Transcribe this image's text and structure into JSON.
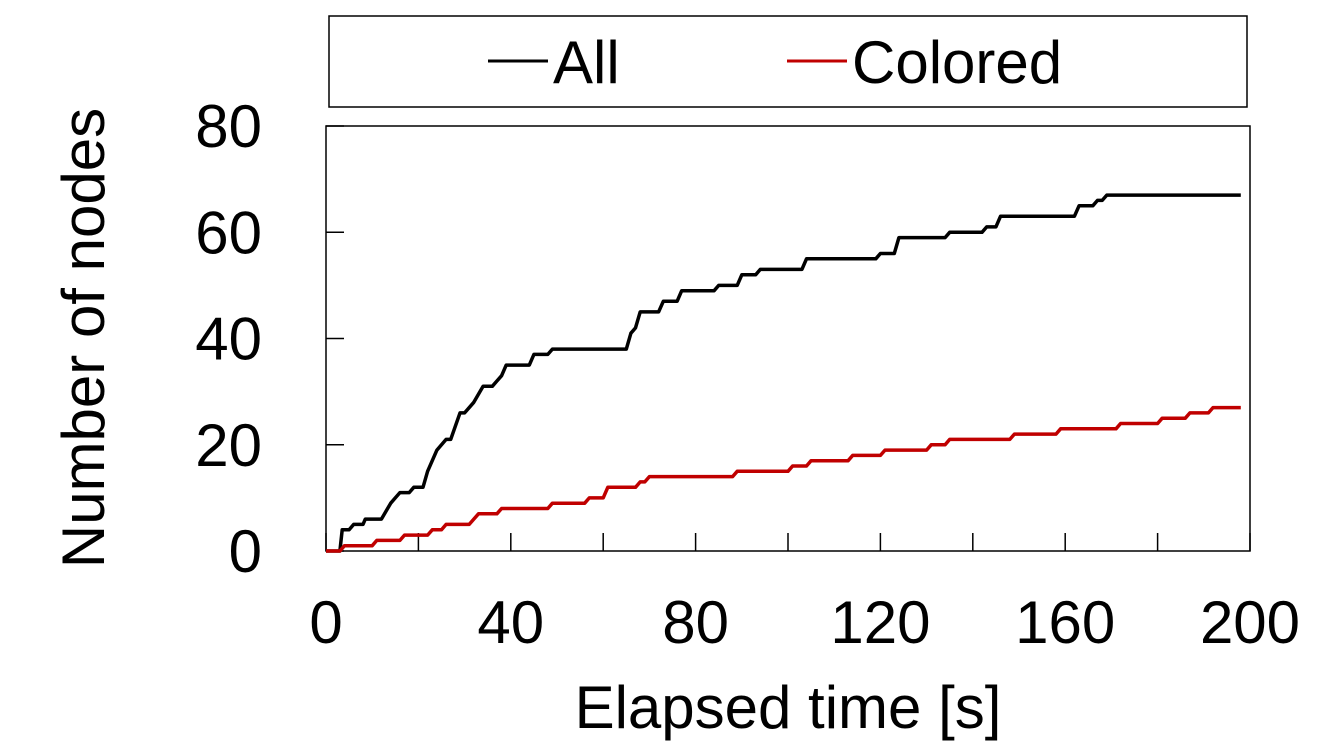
{
  "chart_data": {
    "type": "line",
    "xlabel": "Elapsed time [s]",
    "ylabel": "Number of nodes",
    "xlim": [
      0,
      200
    ],
    "ylim": [
      0,
      80
    ],
    "xticks": [
      0,
      40,
      80,
      120,
      160,
      200
    ],
    "xticks_minor": [
      20,
      60,
      100,
      140,
      180
    ],
    "yticks": [
      0,
      20,
      40,
      60,
      80
    ],
    "grid": false,
    "legend_position": "top (above plot, framed)",
    "series": [
      {
        "name": "All",
        "color": "#000000",
        "step": true,
        "points": [
          [
            0,
            0
          ],
          [
            3,
            0
          ],
          [
            3.5,
            4
          ],
          [
            5,
            4
          ],
          [
            6,
            5
          ],
          [
            8,
            5
          ],
          [
            8.5,
            6
          ],
          [
            12,
            6
          ],
          [
            14,
            9
          ],
          [
            15,
            10
          ],
          [
            16,
            11
          ],
          [
            18,
            11
          ],
          [
            19,
            12
          ],
          [
            21,
            12
          ],
          [
            22,
            15
          ],
          [
            24,
            19
          ],
          [
            26,
            21
          ],
          [
            27,
            21
          ],
          [
            29,
            26
          ],
          [
            30,
            26
          ],
          [
            32,
            28
          ],
          [
            34,
            31
          ],
          [
            36,
            31
          ],
          [
            37,
            32
          ],
          [
            38,
            33
          ],
          [
            39,
            35
          ],
          [
            44,
            35
          ],
          [
            45,
            37
          ],
          [
            48,
            37
          ],
          [
            49,
            38
          ],
          [
            65,
            38
          ],
          [
            66,
            41
          ],
          [
            67,
            42
          ],
          [
            68,
            45
          ],
          [
            72,
            45
          ],
          [
            73,
            47
          ],
          [
            76,
            47
          ],
          [
            77,
            49
          ],
          [
            84,
            49
          ],
          [
            85,
            50
          ],
          [
            89,
            50
          ],
          [
            90,
            52
          ],
          [
            93,
            52
          ],
          [
            94,
            53
          ],
          [
            103,
            53
          ],
          [
            104,
            55
          ],
          [
            119,
            55
          ],
          [
            120,
            56
          ],
          [
            123,
            56
          ],
          [
            124,
            59
          ],
          [
            134,
            59
          ],
          [
            135,
            60
          ],
          [
            142,
            60
          ],
          [
            143,
            61
          ],
          [
            145,
            61
          ],
          [
            146,
            63
          ],
          [
            162,
            63
          ],
          [
            163,
            65
          ],
          [
            166,
            65
          ],
          [
            167,
            66
          ],
          [
            168,
            66
          ],
          [
            169,
            67
          ],
          [
            198,
            67
          ]
        ]
      },
      {
        "name": "Colored",
        "color": "#c00000",
        "step": true,
        "points": [
          [
            0,
            0
          ],
          [
            3,
            0
          ],
          [
            4,
            1
          ],
          [
            10,
            1
          ],
          [
            11,
            2
          ],
          [
            16,
            2
          ],
          [
            17,
            3
          ],
          [
            22,
            3
          ],
          [
            23,
            4
          ],
          [
            25,
            4
          ],
          [
            26,
            5
          ],
          [
            31,
            5
          ],
          [
            32,
            6
          ],
          [
            33,
            7
          ],
          [
            37,
            7
          ],
          [
            38,
            8
          ],
          [
            48,
            8
          ],
          [
            49,
            9
          ],
          [
            56,
            9
          ],
          [
            57,
            10
          ],
          [
            60,
            10
          ],
          [
            61,
            12
          ],
          [
            67,
            12
          ],
          [
            68,
            13
          ],
          [
            69,
            13
          ],
          [
            70,
            14
          ],
          [
            88,
            14
          ],
          [
            89,
            15
          ],
          [
            100,
            15
          ],
          [
            101,
            16
          ],
          [
            104,
            16
          ],
          [
            105,
            17
          ],
          [
            113,
            17
          ],
          [
            114,
            18
          ],
          [
            120,
            18
          ],
          [
            121,
            19
          ],
          [
            130,
            19
          ],
          [
            131,
            20
          ],
          [
            134,
            20
          ],
          [
            135,
            21
          ],
          [
            148,
            21
          ],
          [
            149,
            22
          ],
          [
            158,
            22
          ],
          [
            159,
            23
          ],
          [
            171,
            23
          ],
          [
            172,
            24
          ],
          [
            180,
            24
          ],
          [
            181,
            25
          ],
          [
            186,
            25
          ],
          [
            187,
            26
          ],
          [
            191,
            26
          ],
          [
            192,
            27
          ],
          [
            198,
            27
          ]
        ]
      }
    ]
  }
}
